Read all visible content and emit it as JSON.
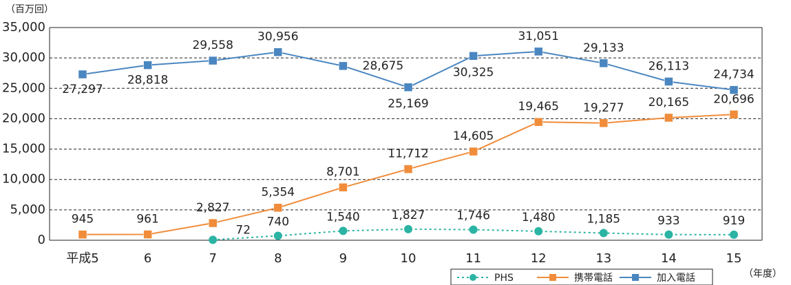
{
  "chart_data": {
    "type": "line",
    "y_unit": "（百万回）",
    "x_label": "（年度）",
    "categories": [
      "平成5",
      "6",
      "7",
      "8",
      "9",
      "10",
      "11",
      "12",
      "13",
      "14",
      "15"
    ],
    "ylim": [
      0,
      35000
    ],
    "yticks": [
      0,
      {
        "value": 5000,
        "label": "5,000"
      },
      {
        "value": 10000,
        "label": "10,000"
      },
      {
        "value": 15000,
        "label": "15,000"
      },
      {
        "value": 20000,
        "label": "20,000"
      },
      {
        "value": 25000,
        "label": "25,000"
      },
      {
        "value": 30000,
        "label": "30,000"
      },
      {
        "value": 35000,
        "label": "35,000"
      }
    ],
    "grid": true,
    "legend": "bottom-right",
    "series": [
      {
        "name": "PHS",
        "color": "#2bb3a3",
        "marker": "circle",
        "dash": true,
        "values": [
          null,
          null,
          72,
          740,
          1540,
          1827,
          1746,
          1480,
          1185,
          933,
          919
        ],
        "value_labels": [
          null,
          null,
          "72",
          "740",
          "1,540",
          "1,827",
          "1,746",
          "1,480",
          "1,185",
          "933",
          "919"
        ]
      },
      {
        "name": "携帯電話",
        "color": "#f08c3a",
        "marker": "square",
        "dash": false,
        "values": [
          945,
          961,
          2827,
          5354,
          8701,
          11712,
          14605,
          19465,
          19277,
          20165,
          20696
        ],
        "value_labels": [
          "945",
          "961",
          "2,827",
          "5,354",
          "8,701",
          "11,712",
          "14,605",
          "19,465",
          "19,277",
          "20,165",
          "20,696"
        ]
      },
      {
        "name": "加入電話",
        "color": "#4a86c0",
        "marker": "square",
        "dash": false,
        "values": [
          27297,
          28818,
          29558,
          30956,
          28675,
          25169,
          30325,
          31051,
          29133,
          26113,
          24734
        ],
        "value_labels": [
          "27,297",
          "28,818",
          "29,558",
          "30,956",
          "28,675",
          "25,169",
          "30,325",
          "31,051",
          "29,133",
          "26,113",
          "24,734"
        ]
      }
    ]
  }
}
